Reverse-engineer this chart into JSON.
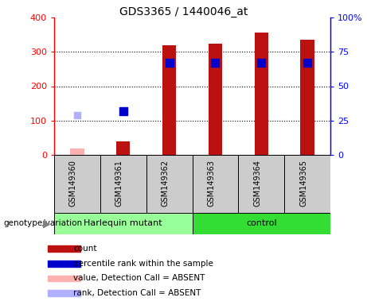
{
  "title": "GDS3365 / 1440046_at",
  "samples": [
    "GSM149360",
    "GSM149361",
    "GSM149362",
    "GSM149363",
    "GSM149364",
    "GSM149365"
  ],
  "count_values": [
    null,
    40,
    320,
    323,
    355,
    335
  ],
  "rank_values": [
    null,
    32,
    67,
    67,
    67,
    67
  ],
  "count_absent": [
    18,
    null,
    null,
    null,
    null,
    null
  ],
  "rank_absent": [
    29,
    null,
    null,
    null,
    null,
    null
  ],
  "ylim_left": [
    0,
    400
  ],
  "ylim_right": [
    0,
    100
  ],
  "yticks_left": [
    0,
    100,
    200,
    300,
    400
  ],
  "yticks_right": [
    0,
    25,
    50,
    75,
    100
  ],
  "yticklabels_right": [
    "0",
    "25",
    "50",
    "75",
    "100%"
  ],
  "bar_color": "#bb1111",
  "rank_color": "#0000cc",
  "absent_bar_color": "#ffb0b0",
  "absent_rank_color": "#b0b0ff",
  "harlequin_color": "#99ff99",
  "control_color": "#33dd33",
  "legend_items": [
    {
      "label": "count",
      "color": "#bb1111"
    },
    {
      "label": "percentile rank within the sample",
      "color": "#0000cc"
    },
    {
      "label": "value, Detection Call = ABSENT",
      "color": "#ffb0b0"
    },
    {
      "label": "rank, Detection Call = ABSENT",
      "color": "#b0b0ff"
    }
  ],
  "bar_width": 0.3,
  "rank_marker_size": 45,
  "absent_marker_size": 35,
  "sample_box_color": "#cccccc",
  "genotype_label": "genotype/variation"
}
